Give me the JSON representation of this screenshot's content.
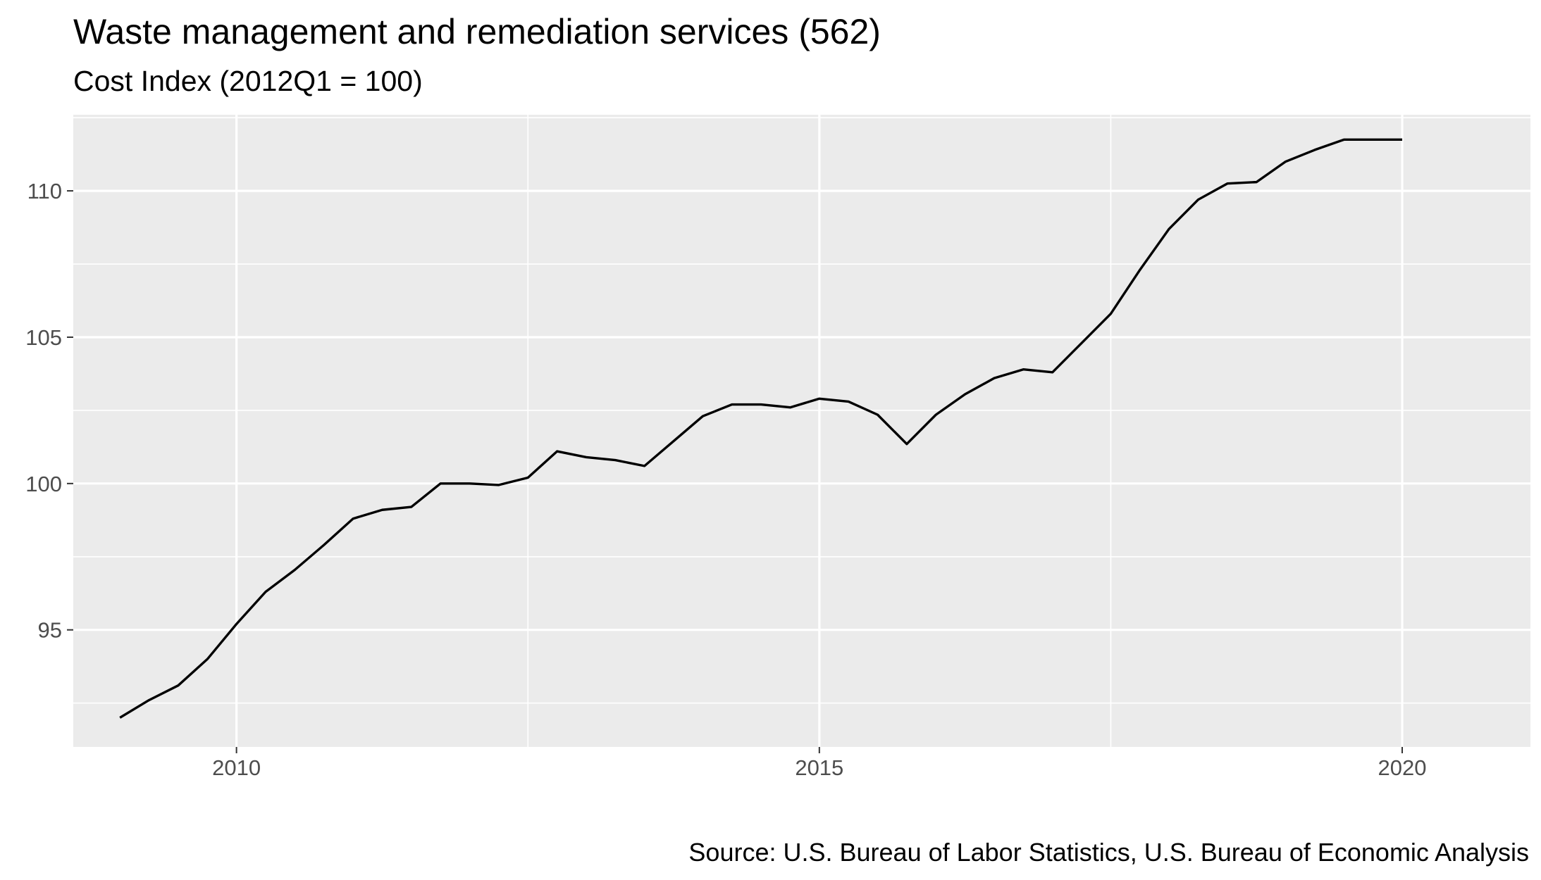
{
  "chart_data": {
    "type": "line",
    "title": "Waste management and remediation services (562)",
    "subtitle": "Cost Index (2012Q1 = 100)",
    "caption": "Source: U.S. Bureau of Labor Statistics, U.S. Bureau of Economic Analysis",
    "xlabel": "",
    "ylabel": "",
    "xlim": [
      2008.6,
      2021.1
    ],
    "ylim": [
      91.0,
      112.6
    ],
    "x_ticks": [
      2010,
      2015,
      2020
    ],
    "x_tick_labels": [
      "2010",
      "2015",
      "2020"
    ],
    "y_ticks": [
      95,
      100,
      105,
      110
    ],
    "y_tick_labels": [
      "95",
      "100",
      "105",
      "110"
    ],
    "grid": true,
    "legend": "none",
    "colors": {
      "panel_background": "#ebebeb",
      "grid": "#ffffff",
      "line": "#000000",
      "tick_text": "#4d4d4d"
    },
    "series": [
      {
        "x": [
          2009.0,
          2009.25,
          2009.5,
          2009.75,
          2010.0,
          2010.25,
          2010.5,
          2010.75,
          2011.0,
          2011.25,
          2011.5,
          2011.75,
          2012.0,
          2012.25,
          2012.5,
          2012.75,
          2013.0,
          2013.25,
          2013.5,
          2013.75,
          2014.0,
          2014.25,
          2014.5,
          2014.75,
          2015.0,
          2015.25,
          2015.5,
          2015.75,
          2016.0,
          2016.25,
          2016.5,
          2016.75,
          2017.0,
          2017.25,
          2017.5,
          2017.75,
          2018.0,
          2018.25,
          2018.5,
          2018.75,
          2019.0,
          2019.25,
          2019.5,
          2019.75,
          2020.0
        ],
        "values": [
          92.0,
          92.6,
          93.1,
          94.0,
          95.2,
          96.3,
          97.05,
          97.9,
          98.8,
          99.1,
          99.2,
          100.0,
          100.0,
          99.95,
          100.2,
          101.1,
          100.9,
          100.8,
          100.6,
          101.45,
          102.3,
          102.7,
          102.7,
          102.6,
          102.9,
          102.8,
          102.35,
          101.35,
          102.35,
          103.05,
          103.6,
          103.9,
          103.8,
          104.8,
          105.8,
          107.3,
          108.7,
          109.7,
          110.25,
          110.3,
          111.0,
          111.4,
          111.75,
          111.75,
          111.75
        ]
      }
    ]
  }
}
